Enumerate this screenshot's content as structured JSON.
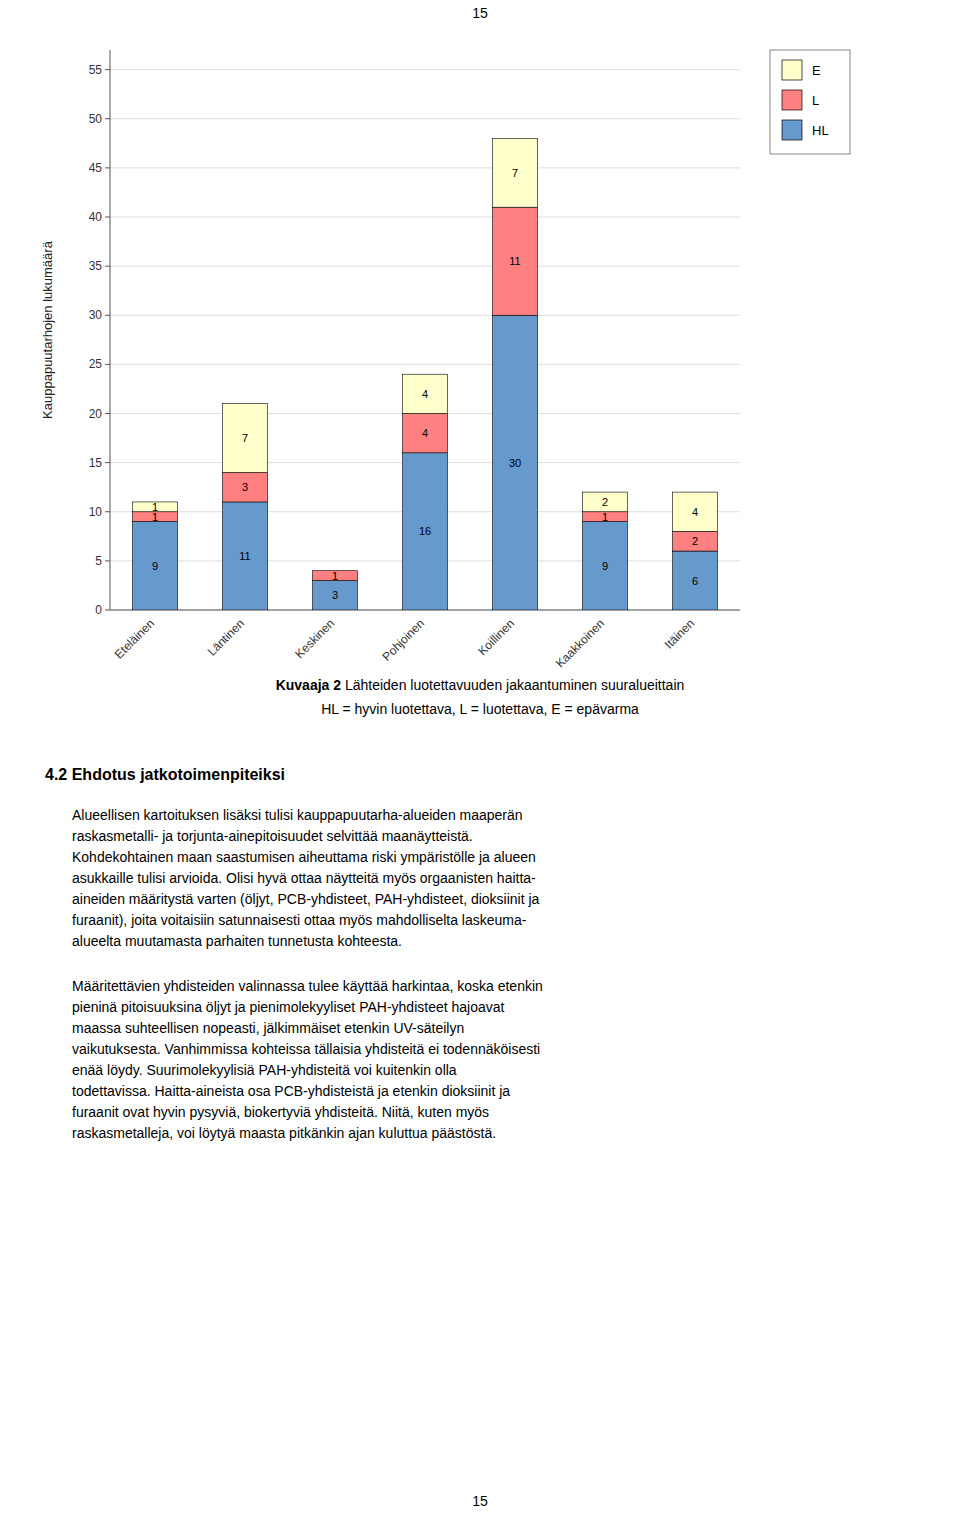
{
  "page_number_top": "15",
  "page_number_bottom": "15",
  "chart_data": {
    "type": "bar",
    "stacked": true,
    "categories": [
      "Eteläinen",
      "Läntinen",
      "Keskinen",
      "Pohjoinen",
      "Koillinen",
      "Kaakkoinen",
      "Itäinen"
    ],
    "series": [
      {
        "name": "HL",
        "color": "#6699CC",
        "values": [
          9,
          11,
          3,
          16,
          30,
          9,
          6
        ]
      },
      {
        "name": "L",
        "color": "#FF8080",
        "values": [
          1,
          3,
          1,
          4,
          11,
          1,
          2
        ]
      },
      {
        "name": "E",
        "color": "#FFFFCC",
        "values": [
          1,
          7,
          0,
          4,
          7,
          2,
          4
        ]
      }
    ],
    "ylabel": "Kauppapuutarhojen lukumäärä",
    "ylim": [
      0,
      57
    ],
    "yticks": [
      0,
      5,
      10,
      15,
      20,
      25,
      30,
      35,
      40,
      45,
      50,
      55
    ],
    "grid": true,
    "legend": "right",
    "data_labels": true
  },
  "caption_bold": "Kuvaaja 2",
  "caption_normal": " Lähteiden luotettavuuden jakaantuminen suuralueittain",
  "caption_line2": "HL = hyvin luotettava, L = luotettava, E = epävarma",
  "section_heading": "4.2 Ehdotus jatkotoimenpiteiksi",
  "para1_lines": [
    "Alueellisen kartoituksen lisäksi tulisi kauppapuutarha-alueiden maaperän",
    "raskasmetalli- ja torjunta-ainepitoisuudet selvittää maanäytteistä.",
    "Kohdekohtainen maan saastumisen aiheuttama riski ympäristölle ja alueen",
    "asukkaille tulisi arvioida. Olisi hyvä ottaa näytteitä myös orgaanisten haitta-",
    "aineiden määritystä varten (öljyt, PCB-yhdisteet, PAH-yhdisteet, dioksiinit ja",
    "furaanit), joita voitaisiin satunnaisesti ottaa myös mahdolliselta laskeuma-",
    "alueelta muutamasta parhaiten tunnetusta kohteesta."
  ],
  "para2_lines": [
    "Määritettävien yhdisteiden valinnassa tulee käyttää harkintaa, koska etenkin",
    "pieninä pitoisuuksina öljyt ja pienimolekyyliset PAH-yhdisteet hajoavat",
    "maassa suhteellisen nopeasti, jälkimmäiset etenkin UV-säteilyn",
    "vaikutuksesta. Vanhimmissa kohteissa tällaisia yhdisteitä ei todennäköisesti",
    "enää löydy. Suurimolekyylisiä PAH-yhdisteitä voi kuitenkin olla",
    "todettavissa. Haitta-aineista osa PCB-yhdisteistä ja etenkin dioksiinit ja",
    "furaanit ovat hyvin pysyviä, biokertyviä yhdisteitä. Niitä, kuten myös",
    "raskasmetalleja, voi löytyä maasta pitkänkin ajan kuluttua päästöstä."
  ]
}
